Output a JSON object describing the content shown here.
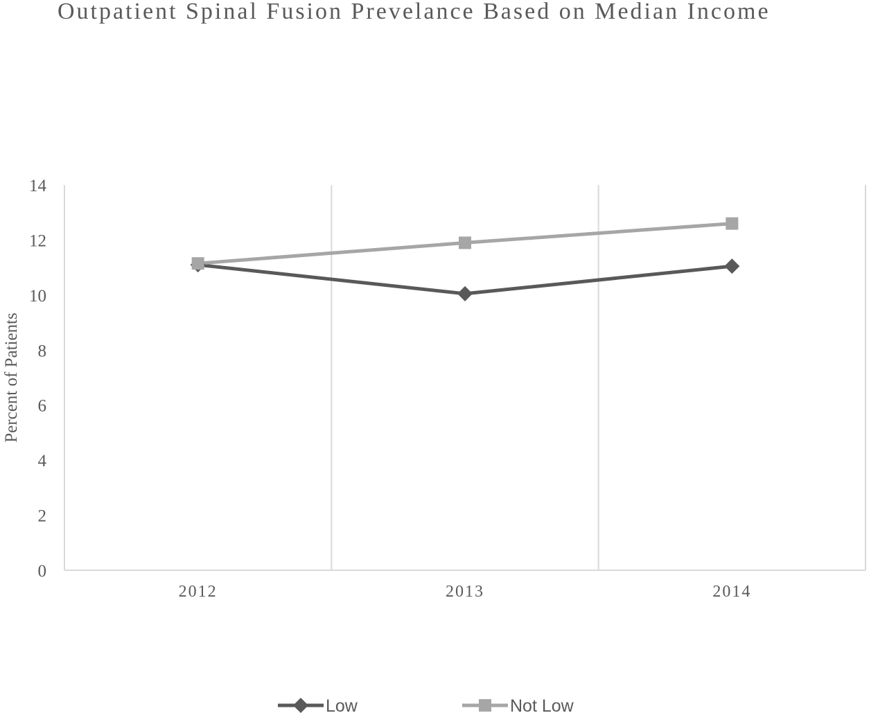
{
  "chart_data": {
    "type": "line",
    "title": "Outpatient Spinal Fusion Prevelance Based on Median Income",
    "xlabel": "",
    "ylabel": "Percent of Patients",
    "categories": [
      "2012",
      "2013",
      "2014"
    ],
    "ylim": [
      0,
      14
    ],
    "yticks": [
      0,
      2,
      4,
      6,
      8,
      10,
      12,
      14
    ],
    "grid": "vertical",
    "legend": "bottom",
    "series": [
      {
        "name": "Low",
        "values": [
          11.1,
          10.05,
          11.05
        ],
        "color": "#595959",
        "marker": "diamond"
      },
      {
        "name": "Not Low",
        "values": [
          11.15,
          11.9,
          12.6
        ],
        "color": "#a6a6a6",
        "marker": "square"
      }
    ]
  }
}
